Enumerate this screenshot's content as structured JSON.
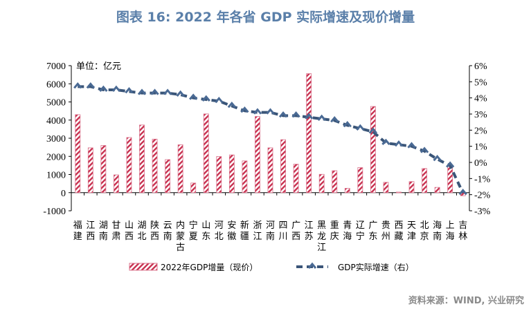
{
  "title": "图表 16: 2022 年各省 GDP 实际增速及现价增量",
  "source": "资料来源：WIND, 兴业研究",
  "colors": {
    "bar": "#c8304f",
    "line": "#3a5578",
    "title": "#5a7fa9"
  },
  "chart_data": {
    "type": "bar+line",
    "unit_label": "单位：亿元",
    "categories": [
      "福建",
      "江西",
      "湖南",
      "甘肃",
      "山西",
      "湖北",
      "陕西",
      "云南",
      "内蒙古",
      "宁夏",
      "山东",
      "河北",
      "安徽",
      "新疆",
      "浙江",
      "河南",
      "四川",
      "广西",
      "江苏",
      "黑龙江",
      "重庆",
      "青海",
      "辽宁",
      "广东",
      "贵州",
      "西藏",
      "天津",
      "北京",
      "海南",
      "上海",
      "吉林"
    ],
    "series": [
      {
        "name": "2022年GDP增量（现价）",
        "type": "bar",
        "axis": "left",
        "values": [
          4300,
          2470,
          2600,
          980,
          3040,
          3730,
          2950,
          1820,
          2640,
          530,
          4340,
          1990,
          2080,
          1750,
          4200,
          2470,
          2920,
          1570,
          6560,
          1010,
          1210,
          240,
          1380,
          4750,
          570,
          30,
          610,
          1330,
          290,
          1440,
          -170
        ]
      },
      {
        "name": "GDP实际增速（右）",
        "type": "line",
        "axis": "right",
        "values": [
          4.7,
          4.7,
          4.5,
          4.5,
          4.4,
          4.3,
          4.3,
          4.3,
          4.2,
          4.0,
          3.9,
          3.8,
          3.5,
          3.2,
          3.1,
          3.1,
          2.9,
          2.9,
          2.8,
          2.7,
          2.6,
          2.3,
          2.1,
          1.9,
          1.2,
          1.1,
          1.0,
          0.7,
          0.2,
          -0.2,
          -1.9
        ]
      }
    ],
    "left_axis": {
      "range": [
        -1000,
        7000
      ],
      "ticks": [
        "-1000",
        "0",
        "1000",
        "2000",
        "3000",
        "4000",
        "5000",
        "6000",
        "7000"
      ]
    },
    "right_axis": {
      "range": [
        -3,
        6
      ],
      "ticks": [
        "-3%",
        "-2%",
        "-1%",
        "0%",
        "1%",
        "2%",
        "3%",
        "4%",
        "5%",
        "6%"
      ]
    },
    "grid": false,
    "legend": "bottom"
  }
}
